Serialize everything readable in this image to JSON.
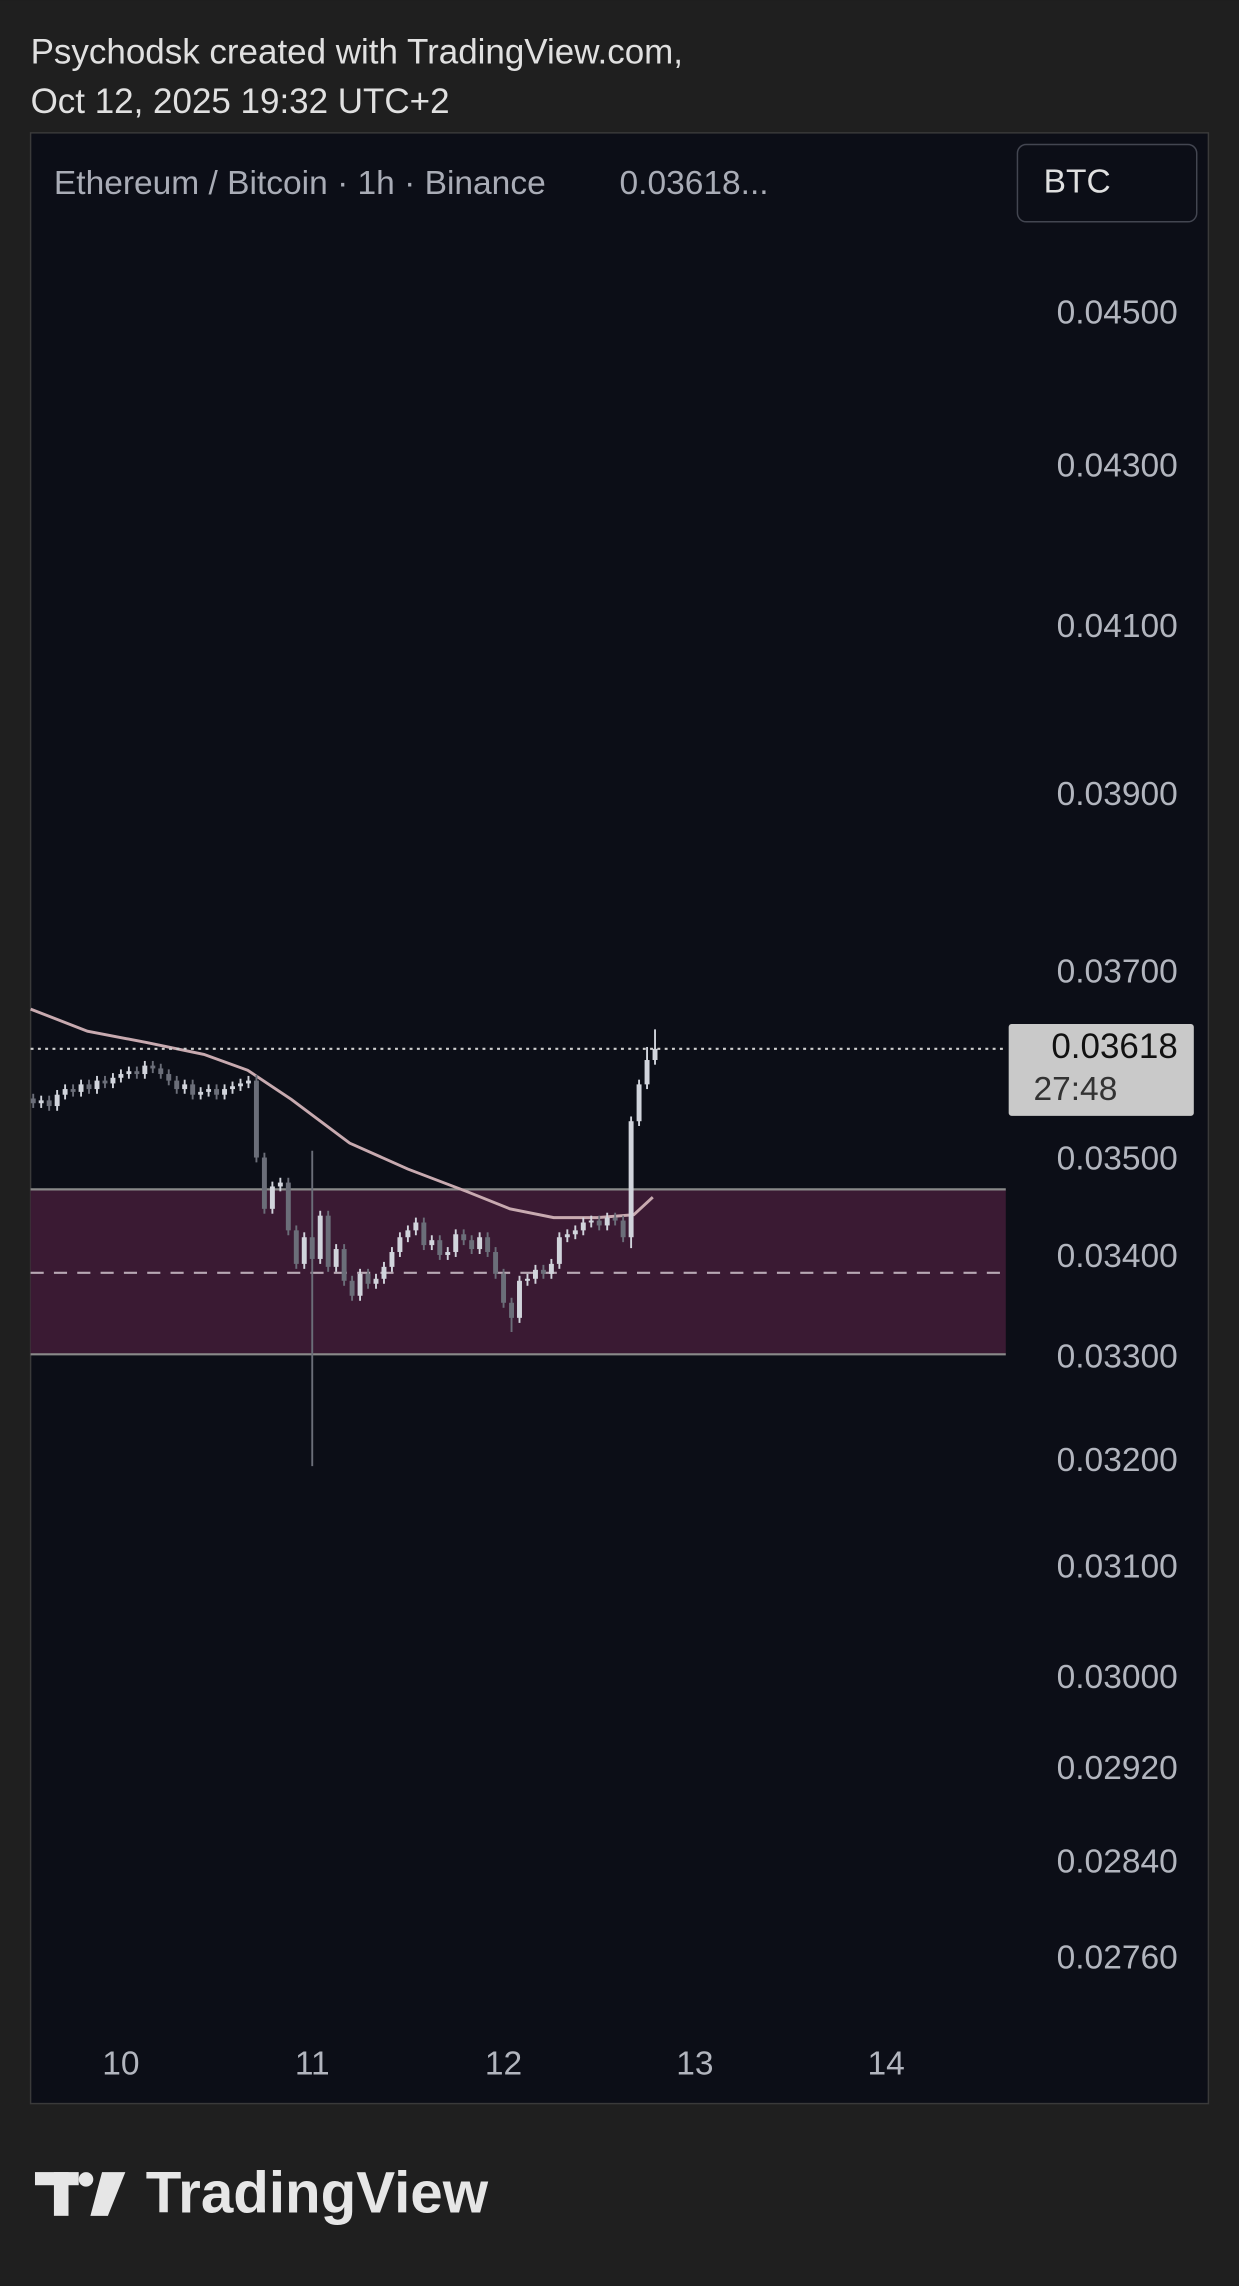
{
  "header": {
    "author_line": "Psychodsk created with TradingView.com,",
    "date_line": "Oct 12, 2025 19:32 UTC+2",
    "symbol": "Ethereum / Bitcoin · 1h · Binance",
    "price_text": "0.03618...",
    "currency_button": "BTC",
    "brand": "TradingView"
  },
  "chart_data": {
    "type": "candlestick",
    "log_scale": true,
    "grid": false,
    "up_color": "#d1d4dc",
    "down_color": "#6b6e79",
    "xlim": [
      9.528,
      14.625
    ],
    "xticks": [
      10,
      11,
      12,
      13,
      14
    ],
    "ylim": [
      0.027,
      0.0475
    ],
    "yticks": [
      {
        "value": 0.045,
        "label": "0.04500"
      },
      {
        "value": 0.043,
        "label": "0.04300"
      },
      {
        "value": 0.041,
        "label": "0.04100"
      },
      {
        "value": 0.039,
        "label": "0.03900"
      },
      {
        "value": 0.037,
        "label": "0.03700"
      },
      {
        "value": 0.035,
        "label": "0.03500"
      },
      {
        "value": 0.034,
        "label": "0.03400"
      },
      {
        "value": 0.033,
        "label": "0.03300"
      },
      {
        "value": 0.032,
        "label": "0.03200"
      },
      {
        "value": 0.031,
        "label": "0.03100"
      },
      {
        "value": 0.03,
        "label": "0.03000"
      },
      {
        "value": 0.0292,
        "label": "0.02920"
      },
      {
        "value": 0.0284,
        "label": "0.02840"
      },
      {
        "value": 0.0276,
        "label": "0.02760"
      }
    ],
    "x": [
      9.5417,
      9.5833,
      9.625,
      9.6667,
      9.7083,
      9.75,
      9.7917,
      9.8333,
      9.875,
      9.9167,
      9.9583,
      10,
      10.0417,
      10.0833,
      10.125,
      10.1667,
      10.2083,
      10.25,
      10.2917,
      10.3333,
      10.375,
      10.4167,
      10.4583,
      10.5,
      10.5417,
      10.5833,
      10.625,
      10.6667,
      10.7083,
      10.75,
      10.7917,
      10.8333,
      10.875,
      10.9167,
      10.9583,
      11,
      11.0417,
      11.0833,
      11.125,
      11.1667,
      11.2083,
      11.25,
      11.2917,
      11.3333,
      11.375,
      11.4167,
      11.4583,
      11.5,
      11.5417,
      11.5833,
      11.625,
      11.6667,
      11.7083,
      11.75,
      11.7917,
      11.8333,
      11.875,
      11.9167,
      11.9583,
      12,
      12.0417,
      12.0833,
      12.125,
      12.1667,
      12.2083,
      12.25,
      12.2917,
      12.3333,
      12.375,
      12.4167,
      12.4583,
      12.5,
      12.5417,
      12.5833,
      12.625,
      12.6667,
      12.7083,
      12.75,
      12.7917
    ],
    "open": [
      0.03565,
      0.0356,
      0.03563,
      0.03557,
      0.03569,
      0.03575,
      0.03572,
      0.0358,
      0.03575,
      0.03584,
      0.03581,
      0.03587,
      0.03591,
      0.03594,
      0.03591,
      0.036,
      0.03597,
      0.03591,
      0.03584,
      0.03575,
      0.0358,
      0.03569,
      0.03572,
      0.03575,
      0.03569,
      0.03575,
      0.03578,
      0.03581,
      0.03584,
      0.03503,
      0.0345,
      0.03473,
      0.03477,
      0.03428,
      0.03394,
      0.03421,
      0.03399,
      0.03443,
      0.03391,
      0.03409,
      0.03377,
      0.03362,
      0.03384,
      0.03374,
      0.03379,
      0.03391,
      0.03406,
      0.03421,
      0.03428,
      0.03436,
      0.03413,
      0.03418,
      0.03403,
      0.03406,
      0.03424,
      0.03418,
      0.03409,
      0.03421,
      0.03406,
      0.03384,
      0.03355,
      0.0334,
      0.03377,
      0.03379,
      0.03388,
      0.03384,
      0.03394,
      0.03421,
      0.03424,
      0.03428,
      0.03436,
      0.03438,
      0.03433,
      0.03441,
      0.03438,
      0.03421,
      0.03541,
      0.0358,
      0.03606
    ],
    "high": [
      0.0357,
      0.03568,
      0.03568,
      0.03574,
      0.0358,
      0.0358,
      0.03585,
      0.03585,
      0.03589,
      0.03589,
      0.03592,
      0.03596,
      0.03599,
      0.03599,
      0.03605,
      0.03605,
      0.03602,
      0.03596,
      0.03589,
      0.03585,
      0.03585,
      0.03577,
      0.0358,
      0.0358,
      0.0358,
      0.03583,
      0.03586,
      0.03589,
      0.0359,
      0.03508,
      0.03478,
      0.03482,
      0.03482,
      0.03433,
      0.03426,
      0.0351,
      0.03448,
      0.03448,
      0.03414,
      0.03414,
      0.03382,
      0.03389,
      0.03389,
      0.03384,
      0.03396,
      0.03411,
      0.03426,
      0.03433,
      0.03441,
      0.03441,
      0.03423,
      0.03423,
      0.03411,
      0.03429,
      0.03429,
      0.03423,
      0.03426,
      0.03426,
      0.03411,
      0.03389,
      0.0336,
      0.03382,
      0.03384,
      0.03393,
      0.03393,
      0.03399,
      0.03426,
      0.03429,
      0.03433,
      0.03441,
      0.03443,
      0.03443,
      0.03446,
      0.03446,
      0.03443,
      0.03546,
      0.03585,
      0.0362,
      0.03639
    ],
    "low": [
      0.03555,
      0.03555,
      0.03552,
      0.03552,
      0.03564,
      0.03567,
      0.03567,
      0.0357,
      0.0357,
      0.03576,
      0.03576,
      0.03582,
      0.03586,
      0.03586,
      0.03586,
      0.03592,
      0.03586,
      0.03579,
      0.0357,
      0.0357,
      0.03564,
      0.03564,
      0.03567,
      0.03564,
      0.03564,
      0.0357,
      0.03573,
      0.03576,
      0.03498,
      0.03445,
      0.03445,
      0.03468,
      0.03423,
      0.03389,
      0.03389,
      0.03196,
      0.03394,
      0.03386,
      0.03386,
      0.03372,
      0.03357,
      0.03357,
      0.03369,
      0.03369,
      0.03374,
      0.03386,
      0.03401,
      0.03416,
      0.03423,
      0.03408,
      0.03408,
      0.03398,
      0.03398,
      0.03401,
      0.03413,
      0.03404,
      0.03404,
      0.03401,
      0.03379,
      0.0335,
      0.03326,
      0.03335,
      0.03372,
      0.03374,
      0.03379,
      0.03379,
      0.03389,
      0.03416,
      0.03419,
      0.03423,
      0.03431,
      0.03428,
      0.03428,
      0.03433,
      0.03416,
      0.0341,
      0.03536,
      0.03575,
      0.03601
    ],
    "close": [
      0.0356,
      0.03563,
      0.03557,
      0.03569,
      0.03575,
      0.03572,
      0.0358,
      0.03575,
      0.03584,
      0.03581,
      0.03587,
      0.03591,
      0.03594,
      0.03591,
      0.036,
      0.03597,
      0.03591,
      0.03584,
      0.03575,
      0.0358,
      0.03569,
      0.03572,
      0.03575,
      0.03569,
      0.03575,
      0.03578,
      0.03581,
      0.03584,
      0.03503,
      0.0345,
      0.03473,
      0.03477,
      0.03428,
      0.03394,
      0.03421,
      0.03399,
      0.03443,
      0.03391,
      0.03409,
      0.03377,
      0.03362,
      0.03384,
      0.03374,
      0.03379,
      0.03391,
      0.03406,
      0.03421,
      0.03428,
      0.03436,
      0.03413,
      0.03418,
      0.03403,
      0.03406,
      0.03424,
      0.03418,
      0.03409,
      0.03421,
      0.03406,
      0.03384,
      0.03355,
      0.0334,
      0.03377,
      0.03379,
      0.03388,
      0.03384,
      0.03394,
      0.03421,
      0.03424,
      0.03428,
      0.03436,
      0.03438,
      0.03433,
      0.03441,
      0.03438,
      0.03421,
      0.03541,
      0.0358,
      0.03606,
      0.03618
    ],
    "moving_average": {
      "color": "#c8aab0",
      "x": [
        9.528,
        9.825,
        10.129,
        10.434,
        10.663,
        10.891,
        11.196,
        11.5,
        11.805,
        12.033,
        12.262,
        12.49,
        12.681,
        12.78
      ],
      "values": [
        0.03661,
        0.03637,
        0.03625,
        0.03612,
        0.03595,
        0.03564,
        0.03518,
        0.03491,
        0.03468,
        0.0345,
        0.03441,
        0.03441,
        0.03444,
        0.03462
      ]
    },
    "zone": {
      "top": 0.0347,
      "bottom": 0.03304,
      "mid": 0.03385,
      "color": "#3a1a33"
    },
    "last_price": 0.03618,
    "countdown": "27:48"
  }
}
